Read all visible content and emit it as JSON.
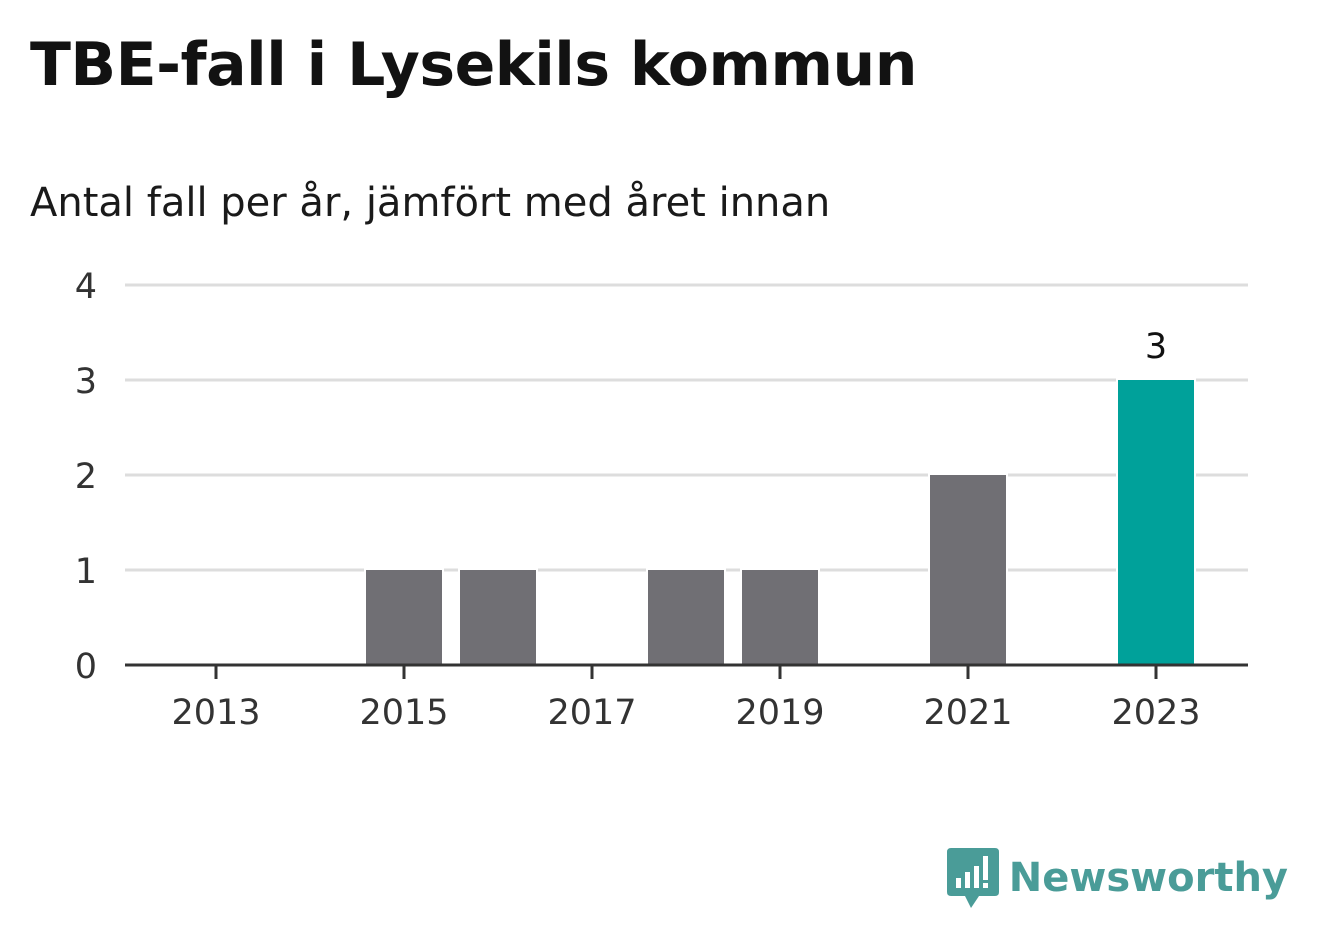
{
  "title": "TBE-fall i Lysekils kommun",
  "subtitle": "Antal fall per år, jämfört med året innan",
  "brand": {
    "name": "Newsworthy",
    "icon": "newsworthy-logo-icon",
    "color": "#4a9c98"
  },
  "colors": {
    "bar": "#706f74",
    "highlight": "#00a19a",
    "grid": "#dddddd",
    "axis": "#333333",
    "tick_text": "#333333"
  },
  "chart_data": {
    "type": "bar",
    "categories": [
      "2013",
      "2014",
      "2015",
      "2016",
      "2017",
      "2018",
      "2019",
      "2020",
      "2021",
      "2022",
      "2023"
    ],
    "values": [
      0,
      0,
      1,
      1,
      0,
      1,
      1,
      0,
      2,
      0,
      3
    ],
    "x_tick_labels": [
      "2013",
      "2015",
      "2017",
      "2019",
      "2021",
      "2023"
    ],
    "y_ticks": [
      0,
      1,
      2,
      3,
      4
    ],
    "ylim": [
      0,
      4
    ],
    "highlight_category": "2023",
    "data_labels": [
      {
        "category": "2023",
        "text": "3"
      }
    ],
    "xlabel": "",
    "ylabel": "",
    "grid": true,
    "legend": "none"
  }
}
